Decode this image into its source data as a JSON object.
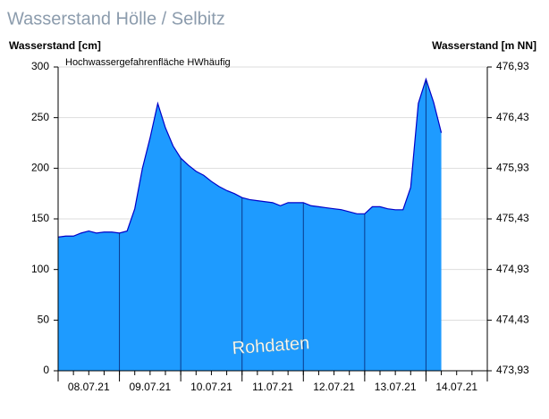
{
  "chart_data": {
    "type": "area",
    "title": "Wasserstand Hölle / Selbitz",
    "y_label": "Wasserstand [cm]",
    "y2_label": "Wasserstand [m NN]",
    "annotation": "Hochwassergefahrenfläche HWhäufig",
    "watermark": "Rohdaten",
    "categories": [
      null,
      null,
      null,
      null,
      "08.07.21",
      null,
      null,
      null,
      null,
      null,
      null,
      null,
      "09.07.21",
      null,
      null,
      null,
      null,
      null,
      null,
      null,
      "10.07.21",
      null,
      null,
      null,
      null,
      null,
      null,
      null,
      "11.07.21",
      null,
      null,
      null,
      null,
      null,
      null,
      null,
      "12.07.21",
      null,
      null,
      null,
      null,
      null,
      null,
      null,
      "13.07.21",
      null,
      null,
      null,
      null,
      null,
      null
    ],
    "tick_label_extra": "14.07.21",
    "series": [
      {
        "name": "Wasserstand",
        "color": "#1e9bff",
        "line_color": "#0000c8",
        "values": [
          132,
          133,
          133,
          136,
          138,
          136,
          137,
          137,
          136,
          138,
          160,
          200,
          230,
          264,
          240,
          222,
          210,
          203,
          197,
          193,
          187,
          182,
          178,
          175,
          171,
          169,
          168,
          167,
          166,
          163,
          166,
          166,
          166,
          163,
          162,
          161,
          160,
          159,
          157,
          155,
          155,
          162,
          162,
          160,
          159,
          159,
          181,
          264,
          288,
          265,
          235
        ]
      }
    ],
    "ylim": [
      0,
      300
    ],
    "yticks": [
      0,
      50,
      100,
      150,
      200,
      250,
      300
    ],
    "y2lim": [
      473.93,
      476.93
    ],
    "y2ticks": [
      {
        "value": 473.93,
        "label": "473,93"
      },
      {
        "value": 474.43,
        "label": "474,43"
      },
      {
        "value": 474.93,
        "label": "474,93"
      },
      {
        "value": 475.43,
        "label": "475,43"
      },
      {
        "value": 475.93,
        "label": "475,93"
      },
      {
        "value": 476.43,
        "label": "476,43"
      },
      {
        "value": 476.93,
        "label": "476,93"
      }
    ],
    "grid": true
  }
}
